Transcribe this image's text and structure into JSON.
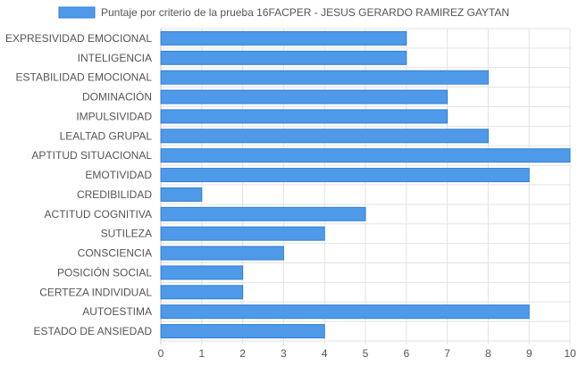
{
  "colors": {
    "bar_fill": "#4f9ae8",
    "bar_stroke": "#2f7fd6",
    "grid": "#e3e3e3",
    "axis": "#c8c8c8"
  },
  "chart_data": {
    "type": "bar",
    "orientation": "horizontal",
    "title": "",
    "xlabel": "",
    "ylabel": "",
    "legend_position": "top-center",
    "grid": true,
    "xlim": [
      0,
      10
    ],
    "x_ticks": [
      "0",
      "1",
      "2",
      "3",
      "4",
      "5",
      "6",
      "7",
      "8",
      "9",
      "10"
    ],
    "categories": [
      "EXPRESIVIDAD EMOCIONAL",
      "INTELIGENCIA",
      "ESTABILIDAD EMOCIONAL",
      "DOMINACIÓN",
      "IMPULSIVIDAD",
      "LEALTAD GRUPAL",
      "APTITUD SITUACIONAL",
      "EMOTIVIDAD",
      "CREDIBILIDAD",
      "ACTITUD COGNITIVA",
      "SUTILEZA",
      "CONSCIENCIA",
      "POSICIÓN SOCIAL",
      "CERTEZA INDIVIDUAL",
      "AUTOESTIMA",
      "ESTADO DE ANSIEDAD"
    ],
    "series": [
      {
        "name": "Puntaje por criterio de la prueba 16FACPER - JESUS GERARDO RAMIREZ GAYTAN",
        "values": [
          6,
          6,
          8,
          7,
          7,
          8,
          10,
          9,
          1,
          5,
          4,
          3,
          2,
          2,
          9,
          4
        ]
      }
    ]
  }
}
